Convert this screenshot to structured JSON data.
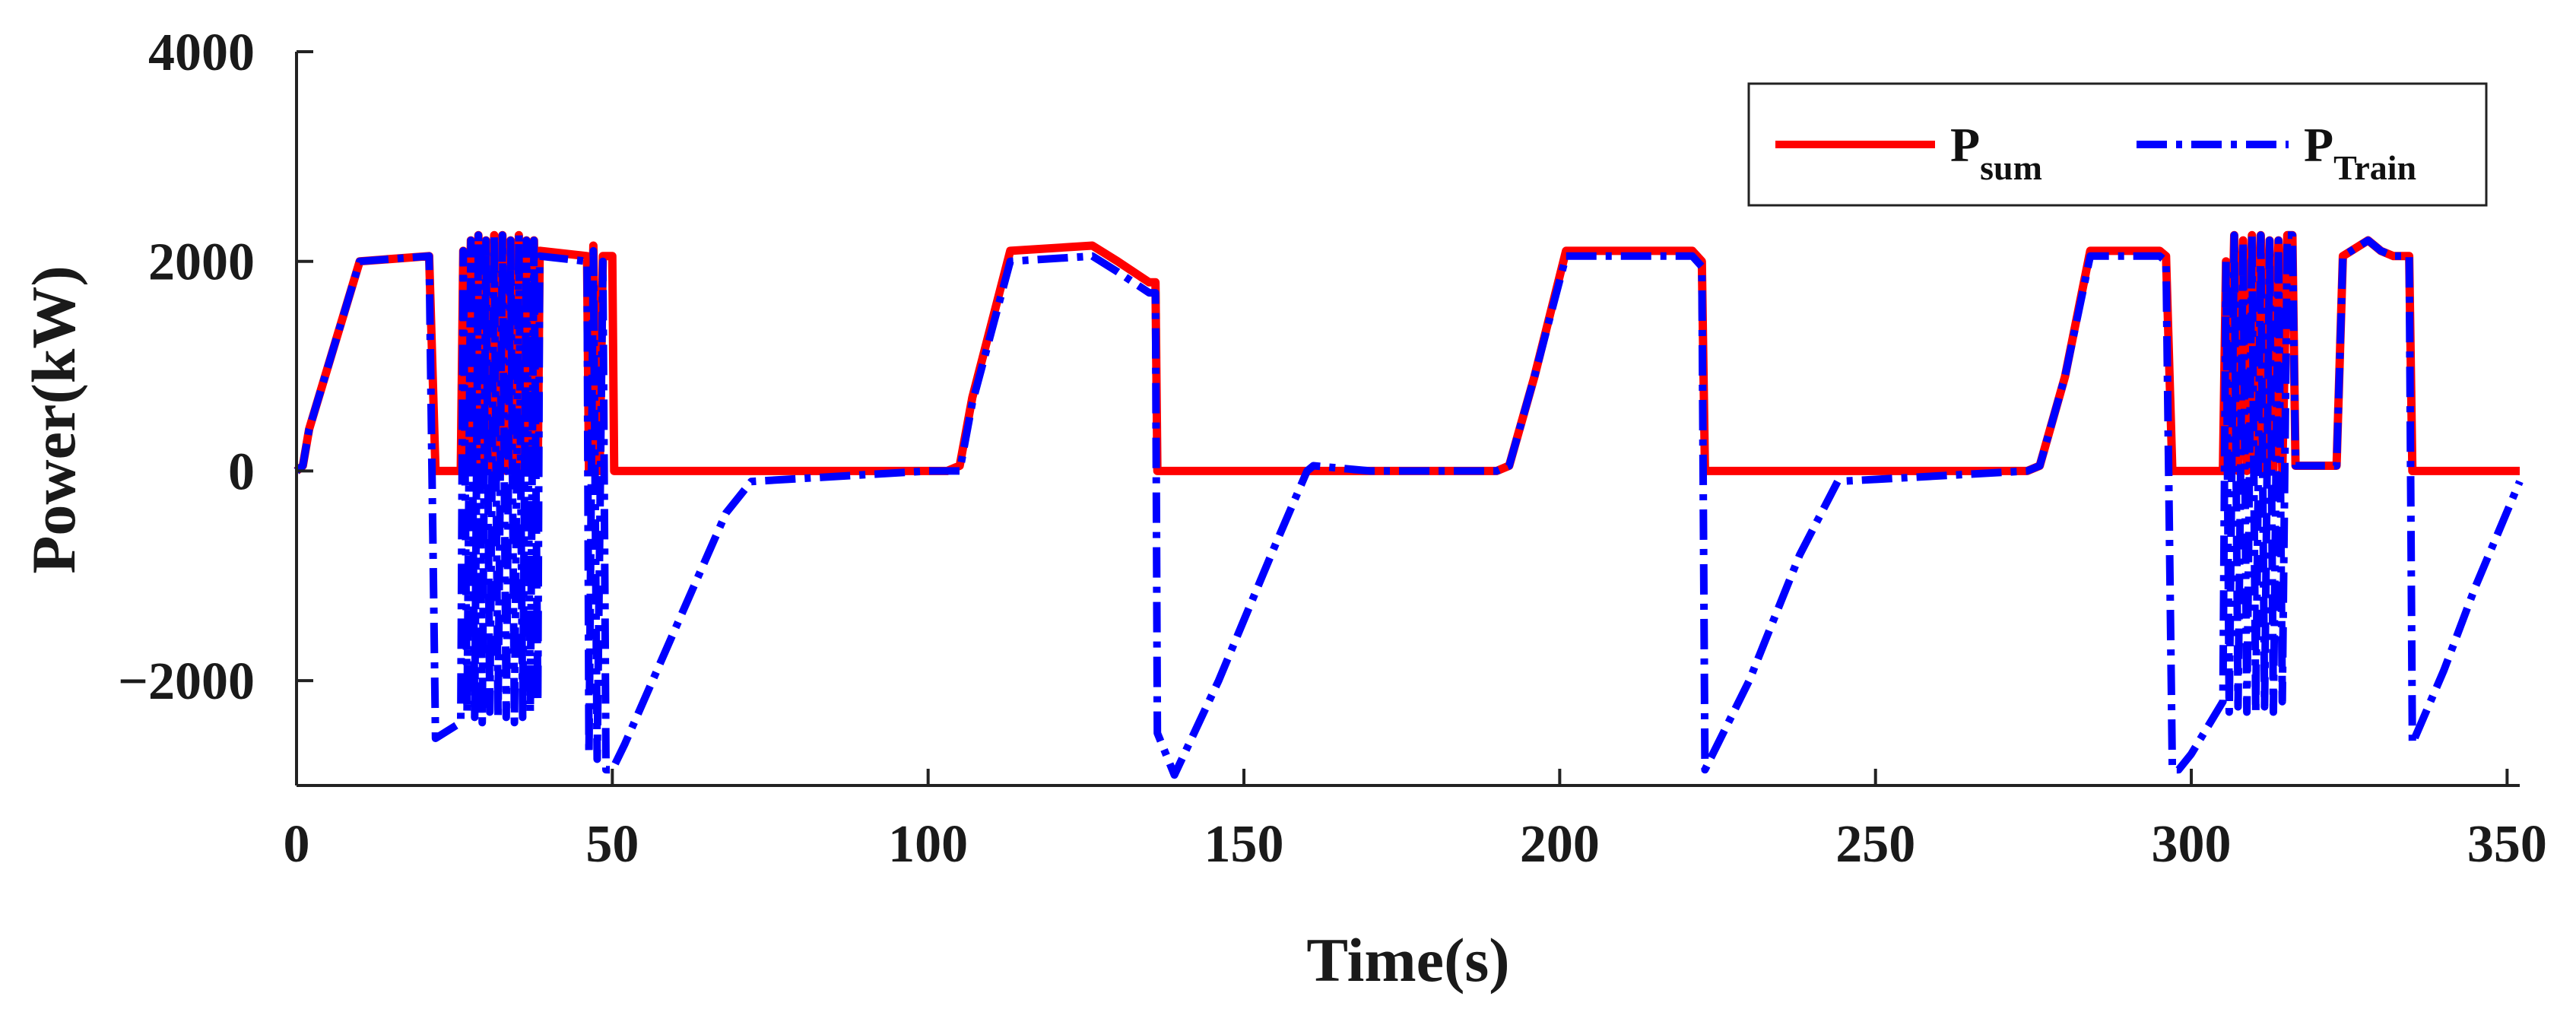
{
  "chart_data": {
    "type": "line",
    "title": "",
    "xlabel": "Time(s)",
    "ylabel": "Power(kW)",
    "xlim": [
      0,
      352
    ],
    "ylim": [
      -3000,
      4000
    ],
    "xticks": [
      0,
      50,
      100,
      150,
      200,
      250,
      300,
      350
    ],
    "yticks": [
      -2000,
      0,
      2000,
      4000
    ],
    "xtick_labels": [
      "0",
      "50",
      "100",
      "150",
      "200",
      "250",
      "300",
      "350"
    ],
    "ytick_labels": [
      "−2000",
      "0",
      "2000",
      "4000"
    ],
    "grid": false,
    "legend_position": "top-right",
    "legend": [
      {
        "label": "P",
        "sub": "sum",
        "color": "#ff0000",
        "style": "solid"
      },
      {
        "label": "P",
        "sub": "Train",
        "color": "#0000ff",
        "style": "dash-dot"
      }
    ],
    "series": [
      {
        "name": "P_sum",
        "color": "#ff0000",
        "style": "solid",
        "points": [
          [
            0,
            0
          ],
          [
            1,
            50
          ],
          [
            2,
            400
          ],
          [
            5,
            1000
          ],
          [
            10,
            2000
          ],
          [
            21,
            2050
          ],
          [
            22,
            0
          ],
          [
            26,
            0
          ],
          [
            26.4,
            2100
          ],
          [
            27,
            0
          ],
          [
            27.6,
            2200
          ],
          [
            28.2,
            0
          ],
          [
            28.8,
            2250
          ],
          [
            29.4,
            0
          ],
          [
            30,
            2200
          ],
          [
            30.6,
            0
          ],
          [
            31.3,
            2250
          ],
          [
            31.9,
            0
          ],
          [
            32.6,
            2250
          ],
          [
            33.2,
            0
          ],
          [
            33.9,
            2200
          ],
          [
            34.5,
            0
          ],
          [
            35.2,
            2250
          ],
          [
            35.8,
            0
          ],
          [
            36.4,
            2200
          ],
          [
            37,
            0
          ],
          [
            37.6,
            2200
          ],
          [
            38.2,
            0
          ],
          [
            38.5,
            2100
          ],
          [
            46,
            2050
          ],
          [
            46.3,
            0
          ],
          [
            47,
            2150
          ],
          [
            47.6,
            0
          ],
          [
            48,
            0
          ],
          [
            48.5,
            2050
          ],
          [
            50,
            2050
          ],
          [
            50.3,
            0
          ],
          [
            103,
            0
          ],
          [
            105,
            50
          ],
          [
            107,
            700
          ],
          [
            113,
            2100
          ],
          [
            126,
            2150
          ],
          [
            130,
            2000
          ],
          [
            135,
            1800
          ],
          [
            136,
            1800
          ],
          [
            136.3,
            0
          ],
          [
            190,
            0
          ],
          [
            192,
            50
          ],
          [
            196,
            900
          ],
          [
            201,
            2100
          ],
          [
            221,
            2100
          ],
          [
            222.5,
            2000
          ],
          [
            223,
            0
          ],
          [
            274,
            0
          ],
          [
            276,
            50
          ],
          [
            280,
            900
          ],
          [
            284,
            2100
          ],
          [
            295,
            2100
          ],
          [
            296,
            2050
          ],
          [
            297,
            0
          ],
          [
            305,
            0
          ],
          [
            305.5,
            2000
          ],
          [
            306,
            0
          ],
          [
            306.8,
            2250
          ],
          [
            307.4,
            0
          ],
          [
            308.2,
            2200
          ],
          [
            308.8,
            0
          ],
          [
            309.6,
            2250
          ],
          [
            310.2,
            0
          ],
          [
            311,
            2250
          ],
          [
            311.6,
            0
          ],
          [
            312.4,
            2200
          ],
          [
            313,
            0
          ],
          [
            313.8,
            2200
          ],
          [
            314.4,
            0
          ],
          [
            315.2,
            2250
          ],
          [
            316,
            2250
          ],
          [
            316.5,
            50
          ],
          [
            323,
            50
          ],
          [
            324,
            2050
          ],
          [
            328,
            2200
          ],
          [
            330,
            2100
          ],
          [
            332,
            2050
          ],
          [
            334.5,
            2050
          ],
          [
            335,
            0
          ],
          [
            352,
            0
          ]
        ]
      },
      {
        "name": "P_Train",
        "color": "#0000ff",
        "style": "dash-dot",
        "points": [
          [
            0,
            0
          ],
          [
            1,
            50
          ],
          [
            2,
            400
          ],
          [
            5,
            1000
          ],
          [
            10,
            2000
          ],
          [
            21,
            2050
          ],
          [
            22,
            -2550
          ],
          [
            26,
            -2400
          ],
          [
            26.4,
            2100
          ],
          [
            27,
            -2300
          ],
          [
            27.6,
            2200
          ],
          [
            28.2,
            -2350
          ],
          [
            28.8,
            2250
          ],
          [
            29.4,
            -2400
          ],
          [
            30,
            2200
          ],
          [
            30.6,
            -2300
          ],
          [
            31.3,
            2250
          ],
          [
            31.9,
            -2350
          ],
          [
            32.6,
            2250
          ],
          [
            33.2,
            -2350
          ],
          [
            33.9,
            2200
          ],
          [
            34.5,
            -2400
          ],
          [
            35.2,
            2250
          ],
          [
            35.8,
            -2350
          ],
          [
            36.4,
            2200
          ],
          [
            37,
            -2300
          ],
          [
            37.6,
            2200
          ],
          [
            38.2,
            -2200
          ],
          [
            38.5,
            2050
          ],
          [
            46,
            2000
          ],
          [
            46.3,
            -2700
          ],
          [
            47,
            2100
          ],
          [
            47.6,
            -2750
          ],
          [
            48.5,
            2000
          ],
          [
            49,
            -2850
          ],
          [
            50,
            -2850
          ],
          [
            52,
            -2600
          ],
          [
            60,
            -1500
          ],
          [
            68,
            -400
          ],
          [
            72,
            -100
          ],
          [
            100,
            0
          ],
          [
            103,
            0
          ],
          [
            105,
            0
          ],
          [
            107,
            650
          ],
          [
            113,
            2000
          ],
          [
            126,
            2050
          ],
          [
            130,
            1900
          ],
          [
            135,
            1700
          ],
          [
            136,
            1700
          ],
          [
            136.3,
            -2500
          ],
          [
            139,
            -2900
          ],
          [
            146,
            -2000
          ],
          [
            155,
            -700
          ],
          [
            160,
            0
          ],
          [
            161,
            50
          ],
          [
            170,
            0
          ],
          [
            190,
            0
          ],
          [
            192,
            50
          ],
          [
            196,
            900
          ],
          [
            201,
            2050
          ],
          [
            221,
            2050
          ],
          [
            222.5,
            1950
          ],
          [
            223,
            -2850
          ],
          [
            230,
            -2000
          ],
          [
            238,
            -800
          ],
          [
            244,
            -100
          ],
          [
            274,
            0
          ],
          [
            276,
            50
          ],
          [
            280,
            900
          ],
          [
            284,
            2050
          ],
          [
            295,
            2050
          ],
          [
            296,
            2000
          ],
          [
            297,
            -2850
          ],
          [
            298,
            -2850
          ],
          [
            300,
            -2700
          ],
          [
            305,
            -2200
          ],
          [
            305.5,
            2000
          ],
          [
            306,
            -2300
          ],
          [
            306.8,
            2250
          ],
          [
            307.4,
            -2250
          ],
          [
            308.2,
            2200
          ],
          [
            308.8,
            -2300
          ],
          [
            309.6,
            2250
          ],
          [
            310.2,
            -2300
          ],
          [
            311,
            2250
          ],
          [
            311.6,
            -2250
          ],
          [
            312.4,
            2200
          ],
          [
            313,
            -2300
          ],
          [
            313.8,
            2200
          ],
          [
            314.4,
            -2200
          ],
          [
            315.2,
            2250
          ],
          [
            316,
            2250
          ],
          [
            316.5,
            50
          ],
          [
            323,
            50
          ],
          [
            324,
            2050
          ],
          [
            328,
            2200
          ],
          [
            330,
            2100
          ],
          [
            332,
            2050
          ],
          [
            334.5,
            2050
          ],
          [
            335,
            -2600
          ],
          [
            340,
            -1900
          ],
          [
            345,
            -1100
          ],
          [
            352,
            -100
          ]
        ]
      }
    ]
  }
}
